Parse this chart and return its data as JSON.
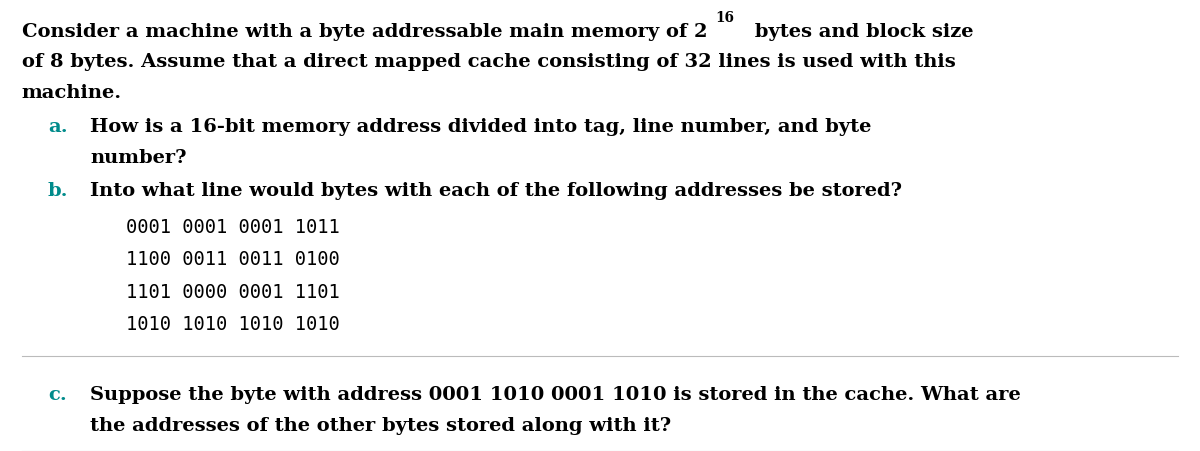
{
  "bg_color": "#ffffff",
  "text_color": "#000000",
  "label_color": "#008B8B",
  "figsize": [
    12.0,
    4.52
  ],
  "dpi": 100,
  "font_size": 14.0,
  "font_size_small": 9.8,
  "addr_font_size": 13.5,
  "intro": [
    "Consider a machine with a byte addressable main memory of 2",
    "16",
    " bytes and block size",
    "of 8 bytes. Assume that a direct mapped cache consisting of 32 lines is used with this",
    "machine."
  ],
  "addresses": [
    "0001 0001 0001 1011",
    "1100 0011 0011 0100",
    "1101 0000 0001 1101",
    "1010 1010 1010 1010"
  ],
  "line_color": "#bbbbbb",
  "line_lw": 0.8
}
